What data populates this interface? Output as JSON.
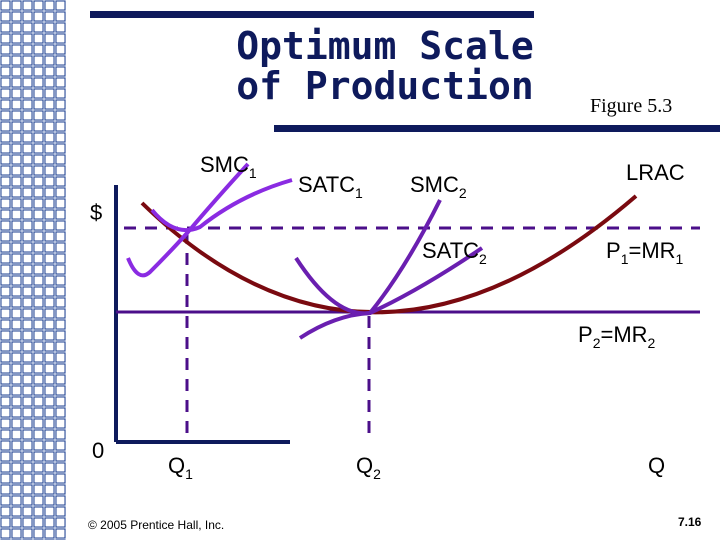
{
  "slide": {
    "title_line1": "Optimum Scale",
    "title_line2": "of Production",
    "figure_label": "Figure 5.3",
    "copyright": "© 2005 Prentice Hall, Inc.",
    "page_number": "7.16"
  },
  "colors": {
    "title": "#0e1a5c",
    "lrac": "#7a0a10",
    "smc": "#8a2be2",
    "satc": "#6a1fb0",
    "dashed": "#4b0f8a",
    "axis": "#0e1a5c",
    "grid": "#1c3f8f"
  },
  "diagram": {
    "y_axis_label": "$",
    "origin_label": "0",
    "x_axis_label": "Q",
    "curves": {
      "smc1": {
        "main": "SMC",
        "sub": "1"
      },
      "satc1": {
        "main": "SATC",
        "sub": "1"
      },
      "smc2": {
        "main": "SMC",
        "sub": "2"
      },
      "satc2": {
        "main": "SATC",
        "sub": "2"
      },
      "lrac": "LRAC"
    },
    "price_lines": {
      "p1": {
        "p": "P",
        "p_sub": "1",
        "eq": "=MR",
        "mr_sub": "1"
      },
      "p2": {
        "p": "P",
        "p_sub": "2",
        "eq": "=MR",
        "mr_sub": "2"
      }
    },
    "quantities": {
      "q1": {
        "main": "Q",
        "sub": "1"
      },
      "q2": {
        "main": "Q",
        "sub": "2"
      }
    }
  }
}
